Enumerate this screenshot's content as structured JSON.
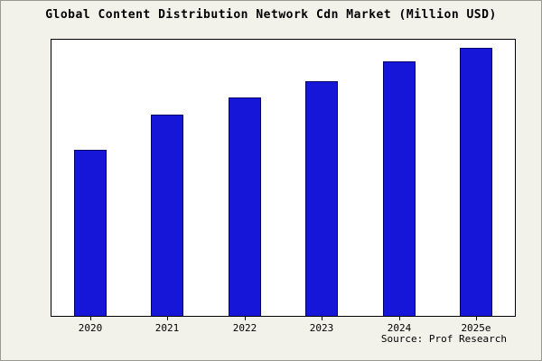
{
  "chart_data": {
    "type": "bar",
    "title": "Global Content Distribution Network Cdn Market (Million USD)",
    "categories": [
      "2020",
      "2021",
      "2022",
      "2023",
      "2024",
      "2025e"
    ],
    "values": [
      60,
      73,
      79,
      85,
      92,
      97
    ],
    "ylim": [
      0,
      100
    ],
    "xlabel": "",
    "ylabel": "",
    "grid": false,
    "legend": false,
    "colors": {
      "bar_fill": "#1616d8",
      "bar_border": "#000066",
      "plot_background": "#ffffff",
      "page_background": "#f2f1ea"
    }
  },
  "footer": {
    "source": "Source: Prof Research"
  }
}
